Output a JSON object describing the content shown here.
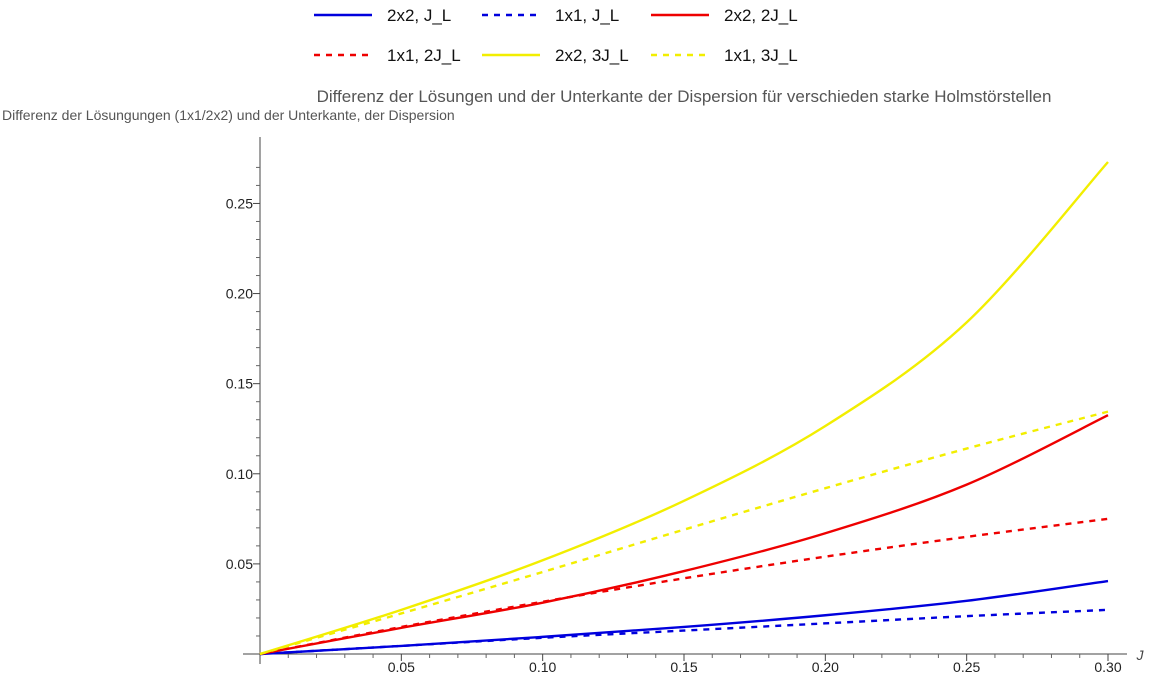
{
  "chart_data": {
    "type": "line",
    "title": "Differenz der Lösungen und der Unterkante der Dispersion für verschieden starke Holmstörstellen",
    "ylabel": "Differenz der Lösungungen (1x1/2x2) und der Unterkante, der Dispersion",
    "xlabel": "J",
    "xlim": [
      0,
      0.3
    ],
    "ylim": [
      0,
      0.28
    ],
    "x_ticks": [
      "0.05",
      "0.10",
      "0.15",
      "0.20",
      "0.25",
      "0.30"
    ],
    "y_ticks": [
      "0.05",
      "0.10",
      "0.15",
      "0.20",
      "0.25"
    ],
    "legend_position": "top",
    "grid": false,
    "x": [
      0,
      0.05,
      0.1,
      0.15,
      0.2,
      0.25,
      0.3
    ],
    "series": [
      {
        "name": "2x2, J_L",
        "color": "#0000dd",
        "dash": "solid",
        "values": [
          0,
          0.0045,
          0.0095,
          0.015,
          0.0215,
          0.0295,
          0.0405
        ]
      },
      {
        "name": "1x1, J_L",
        "color": "#0000dd",
        "dash": "dashed",
        "values": [
          0,
          0.0045,
          0.009,
          0.013,
          0.017,
          0.021,
          0.0245
        ]
      },
      {
        "name": "2x2, 2J_L",
        "color": "#ee0000",
        "dash": "solid",
        "values": [
          0,
          0.0145,
          0.0285,
          0.046,
          0.067,
          0.094,
          0.1325
        ]
      },
      {
        "name": "1x1, 2J_L",
        "color": "#ee0000",
        "dash": "dashed",
        "values": [
          0,
          0.015,
          0.029,
          0.042,
          0.054,
          0.065,
          0.075
        ]
      },
      {
        "name": "2x2, 3J_L",
        "color": "#f2ee00",
        "dash": "solid",
        "values": [
          0,
          0.0245,
          0.052,
          0.085,
          0.1265,
          0.184,
          0.273
        ]
      },
      {
        "name": "1x1, 3J_L",
        "color": "#f2ee00",
        "dash": "dashed",
        "values": [
          0,
          0.0225,
          0.0455,
          0.069,
          0.092,
          0.114,
          0.1345
        ]
      }
    ]
  }
}
